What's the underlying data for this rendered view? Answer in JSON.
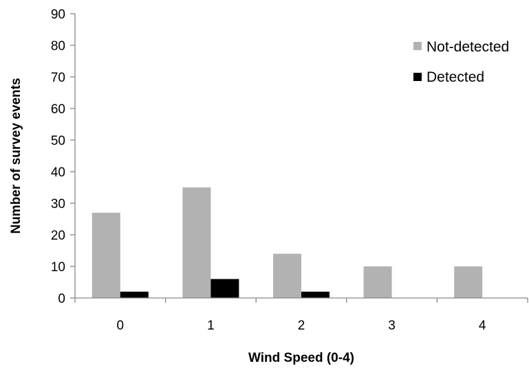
{
  "chart_data": {
    "type": "bar",
    "title": "",
    "xlabel": "Wind Speed (0-4)",
    "ylabel": "Number of survey events",
    "categories": [
      "0",
      "1",
      "2",
      "3",
      "4"
    ],
    "series": [
      {
        "name": "Not-detected",
        "values": [
          27,
          35,
          14,
          10,
          10
        ],
        "color": "#b2b2b2"
      },
      {
        "name": "Detected",
        "values": [
          2,
          6,
          2,
          0,
          0
        ],
        "color": "#000000"
      }
    ],
    "ylim": [
      0,
      90
    ],
    "yticks": [
      "0",
      "10",
      "20",
      "30",
      "40",
      "50",
      "60",
      "70",
      "80",
      "90"
    ],
    "grid": false,
    "legend_position": "top-right"
  }
}
